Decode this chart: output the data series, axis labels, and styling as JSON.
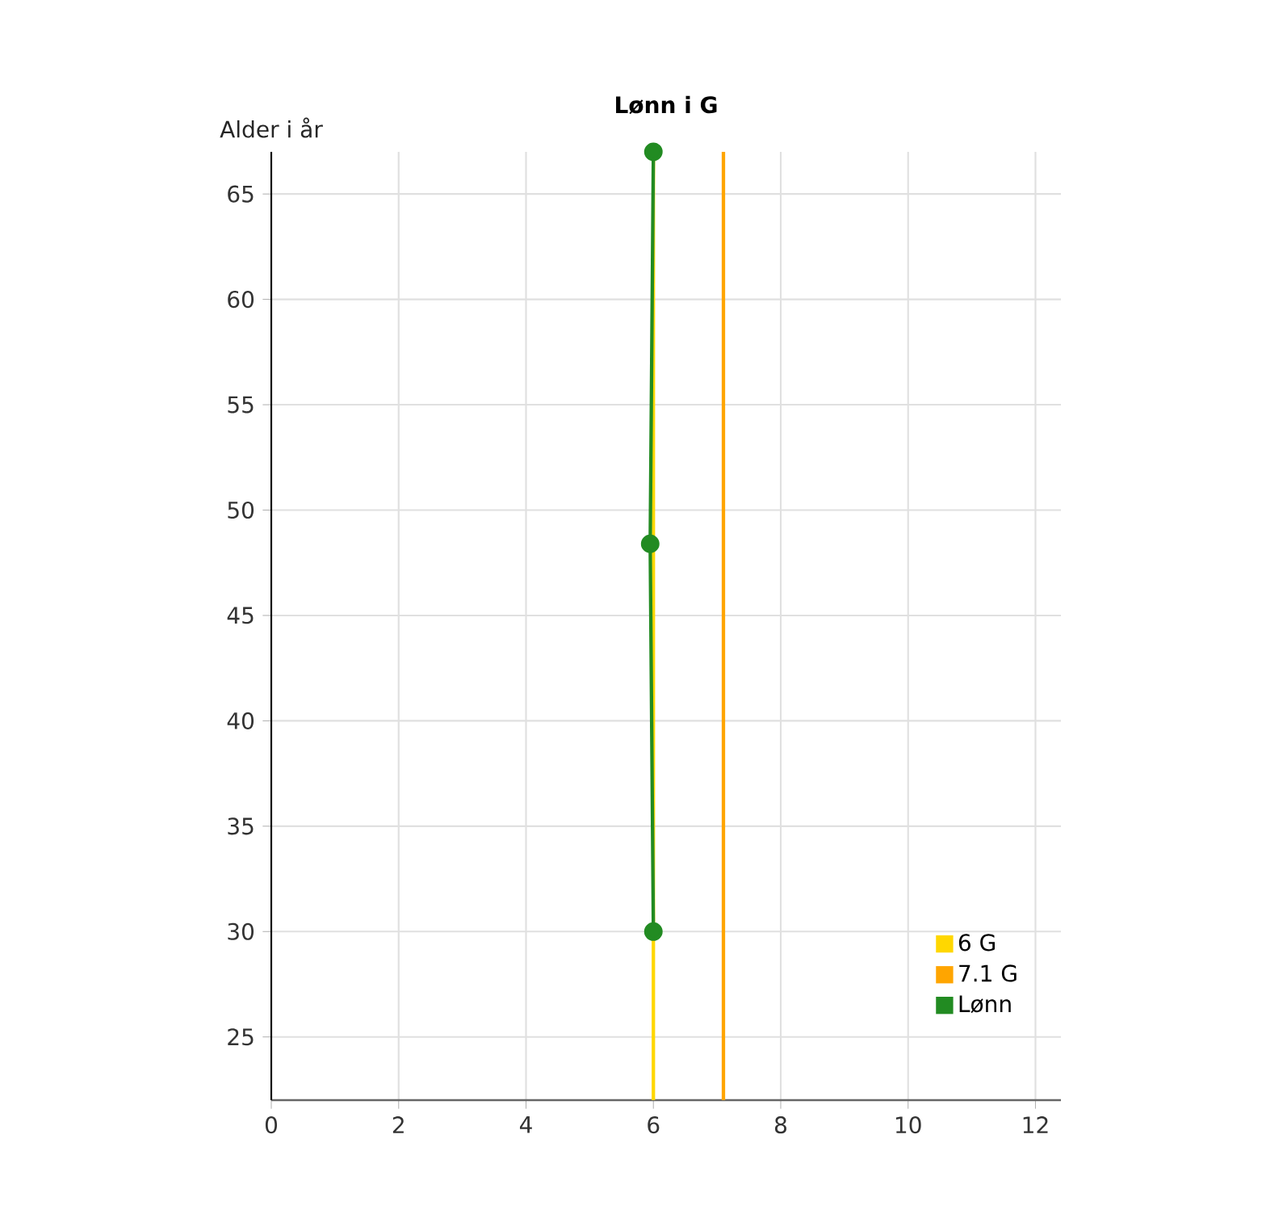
{
  "chart_data": {
    "type": "line",
    "title": "Lønn i G",
    "ylabel": "Alder i år",
    "xlim": [
      0,
      12.4
    ],
    "xticks": [
      0,
      2,
      4,
      6,
      8,
      10,
      12
    ],
    "ylim": [
      22,
      67
    ],
    "yticks": [
      25,
      30,
      35,
      40,
      45,
      50,
      55,
      60,
      65
    ],
    "grid": true,
    "legend": "bottom right",
    "series": [
      {
        "name": "6 G",
        "color": "#ffd700",
        "x": [
          6,
          6
        ],
        "values": [
          22,
          67
        ],
        "marker": "none"
      },
      {
        "name": "7.1 G",
        "color": "#ffa500",
        "x": [
          7.1,
          7.1
        ],
        "values": [
          22,
          67
        ],
        "marker": "none"
      },
      {
        "name": "Lønn",
        "color": "#228b22",
        "x": [
          6.0,
          5.95,
          6.0
        ],
        "values": [
          30,
          48.4,
          67
        ],
        "marker": "circle"
      }
    ]
  }
}
